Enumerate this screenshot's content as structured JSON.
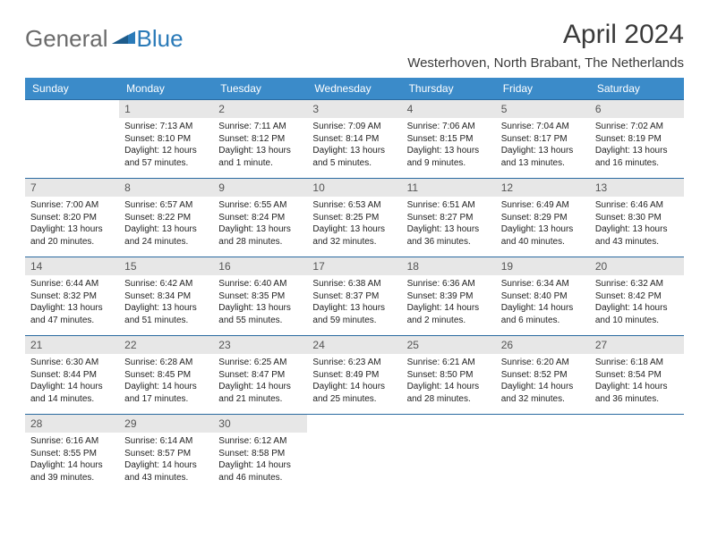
{
  "logo": {
    "general": "General",
    "blue": "Blue"
  },
  "title": "April 2024",
  "location": "Westerhoven, North Brabant, The Netherlands",
  "colors": {
    "header_bg": "#3b8bc9",
    "header_text": "#ffffff",
    "daynum_bg": "#e7e7e7",
    "border": "#2a6aa0",
    "logo_gray": "#6a6a6a",
    "logo_blue": "#2a7ab8"
  },
  "day_headers": [
    "Sunday",
    "Monday",
    "Tuesday",
    "Wednesday",
    "Thursday",
    "Friday",
    "Saturday"
  ],
  "weeks": [
    [
      {
        "num": "",
        "lines": []
      },
      {
        "num": "1",
        "lines": [
          "Sunrise: 7:13 AM",
          "Sunset: 8:10 PM",
          "Daylight: 12 hours",
          "and 57 minutes."
        ]
      },
      {
        "num": "2",
        "lines": [
          "Sunrise: 7:11 AM",
          "Sunset: 8:12 PM",
          "Daylight: 13 hours",
          "and 1 minute."
        ]
      },
      {
        "num": "3",
        "lines": [
          "Sunrise: 7:09 AM",
          "Sunset: 8:14 PM",
          "Daylight: 13 hours",
          "and 5 minutes."
        ]
      },
      {
        "num": "4",
        "lines": [
          "Sunrise: 7:06 AM",
          "Sunset: 8:15 PM",
          "Daylight: 13 hours",
          "and 9 minutes."
        ]
      },
      {
        "num": "5",
        "lines": [
          "Sunrise: 7:04 AM",
          "Sunset: 8:17 PM",
          "Daylight: 13 hours",
          "and 13 minutes."
        ]
      },
      {
        "num": "6",
        "lines": [
          "Sunrise: 7:02 AM",
          "Sunset: 8:19 PM",
          "Daylight: 13 hours",
          "and 16 minutes."
        ]
      }
    ],
    [
      {
        "num": "7",
        "lines": [
          "Sunrise: 7:00 AM",
          "Sunset: 8:20 PM",
          "Daylight: 13 hours",
          "and 20 minutes."
        ]
      },
      {
        "num": "8",
        "lines": [
          "Sunrise: 6:57 AM",
          "Sunset: 8:22 PM",
          "Daylight: 13 hours",
          "and 24 minutes."
        ]
      },
      {
        "num": "9",
        "lines": [
          "Sunrise: 6:55 AM",
          "Sunset: 8:24 PM",
          "Daylight: 13 hours",
          "and 28 minutes."
        ]
      },
      {
        "num": "10",
        "lines": [
          "Sunrise: 6:53 AM",
          "Sunset: 8:25 PM",
          "Daylight: 13 hours",
          "and 32 minutes."
        ]
      },
      {
        "num": "11",
        "lines": [
          "Sunrise: 6:51 AM",
          "Sunset: 8:27 PM",
          "Daylight: 13 hours",
          "and 36 minutes."
        ]
      },
      {
        "num": "12",
        "lines": [
          "Sunrise: 6:49 AM",
          "Sunset: 8:29 PM",
          "Daylight: 13 hours",
          "and 40 minutes."
        ]
      },
      {
        "num": "13",
        "lines": [
          "Sunrise: 6:46 AM",
          "Sunset: 8:30 PM",
          "Daylight: 13 hours",
          "and 43 minutes."
        ]
      }
    ],
    [
      {
        "num": "14",
        "lines": [
          "Sunrise: 6:44 AM",
          "Sunset: 8:32 PM",
          "Daylight: 13 hours",
          "and 47 minutes."
        ]
      },
      {
        "num": "15",
        "lines": [
          "Sunrise: 6:42 AM",
          "Sunset: 8:34 PM",
          "Daylight: 13 hours",
          "and 51 minutes."
        ]
      },
      {
        "num": "16",
        "lines": [
          "Sunrise: 6:40 AM",
          "Sunset: 8:35 PM",
          "Daylight: 13 hours",
          "and 55 minutes."
        ]
      },
      {
        "num": "17",
        "lines": [
          "Sunrise: 6:38 AM",
          "Sunset: 8:37 PM",
          "Daylight: 13 hours",
          "and 59 minutes."
        ]
      },
      {
        "num": "18",
        "lines": [
          "Sunrise: 6:36 AM",
          "Sunset: 8:39 PM",
          "Daylight: 14 hours",
          "and 2 minutes."
        ]
      },
      {
        "num": "19",
        "lines": [
          "Sunrise: 6:34 AM",
          "Sunset: 8:40 PM",
          "Daylight: 14 hours",
          "and 6 minutes."
        ]
      },
      {
        "num": "20",
        "lines": [
          "Sunrise: 6:32 AM",
          "Sunset: 8:42 PM",
          "Daylight: 14 hours",
          "and 10 minutes."
        ]
      }
    ],
    [
      {
        "num": "21",
        "lines": [
          "Sunrise: 6:30 AM",
          "Sunset: 8:44 PM",
          "Daylight: 14 hours",
          "and 14 minutes."
        ]
      },
      {
        "num": "22",
        "lines": [
          "Sunrise: 6:28 AM",
          "Sunset: 8:45 PM",
          "Daylight: 14 hours",
          "and 17 minutes."
        ]
      },
      {
        "num": "23",
        "lines": [
          "Sunrise: 6:25 AM",
          "Sunset: 8:47 PM",
          "Daylight: 14 hours",
          "and 21 minutes."
        ]
      },
      {
        "num": "24",
        "lines": [
          "Sunrise: 6:23 AM",
          "Sunset: 8:49 PM",
          "Daylight: 14 hours",
          "and 25 minutes."
        ]
      },
      {
        "num": "25",
        "lines": [
          "Sunrise: 6:21 AM",
          "Sunset: 8:50 PM",
          "Daylight: 14 hours",
          "and 28 minutes."
        ]
      },
      {
        "num": "26",
        "lines": [
          "Sunrise: 6:20 AM",
          "Sunset: 8:52 PM",
          "Daylight: 14 hours",
          "and 32 minutes."
        ]
      },
      {
        "num": "27",
        "lines": [
          "Sunrise: 6:18 AM",
          "Sunset: 8:54 PM",
          "Daylight: 14 hours",
          "and 36 minutes."
        ]
      }
    ],
    [
      {
        "num": "28",
        "lines": [
          "Sunrise: 6:16 AM",
          "Sunset: 8:55 PM",
          "Daylight: 14 hours",
          "and 39 minutes."
        ]
      },
      {
        "num": "29",
        "lines": [
          "Sunrise: 6:14 AM",
          "Sunset: 8:57 PM",
          "Daylight: 14 hours",
          "and 43 minutes."
        ]
      },
      {
        "num": "30",
        "lines": [
          "Sunrise: 6:12 AM",
          "Sunset: 8:58 PM",
          "Daylight: 14 hours",
          "and 46 minutes."
        ]
      },
      {
        "num": "",
        "lines": []
      },
      {
        "num": "",
        "lines": []
      },
      {
        "num": "",
        "lines": []
      },
      {
        "num": "",
        "lines": []
      }
    ]
  ]
}
